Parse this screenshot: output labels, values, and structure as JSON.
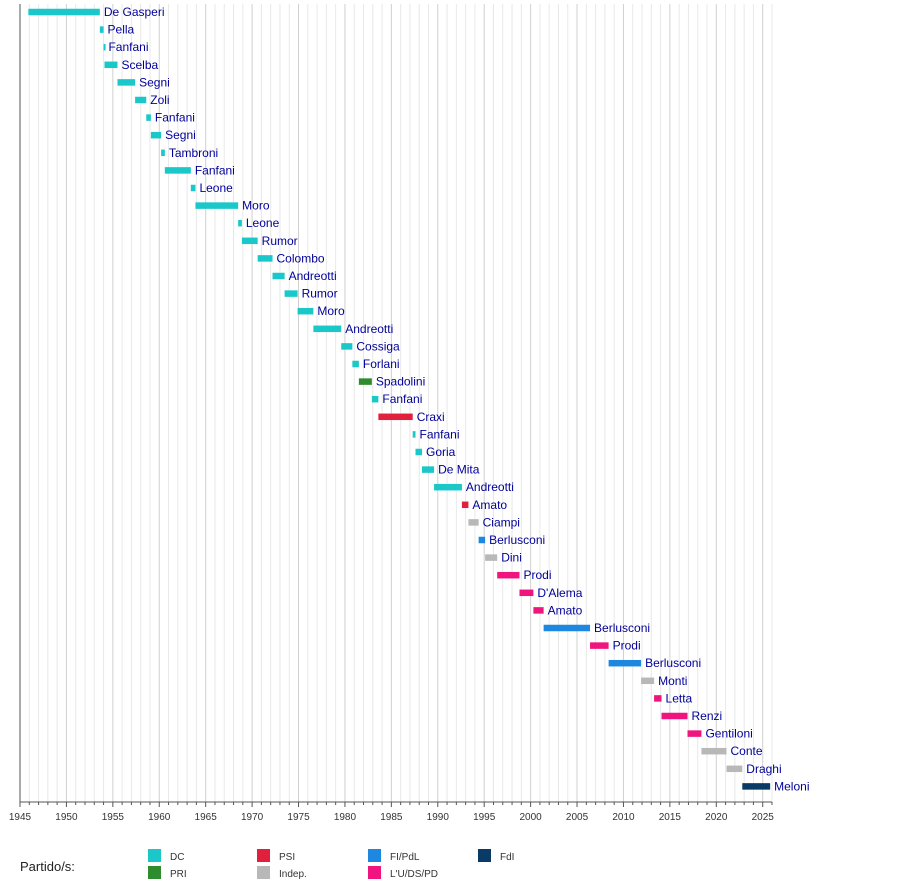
{
  "chart_data": {
    "type": "bar",
    "orientation": "horizontal-timeline",
    "xlim": [
      1945,
      2026
    ],
    "xticks": [
      "1945",
      "1950",
      "1955",
      "1960",
      "1965",
      "1970",
      "1975",
      "1980",
      "1985",
      "1990",
      "1995",
      "2000",
      "2005",
      "2010",
      "2015",
      "2020",
      "2025"
    ],
    "grid": "vertical-yearly",
    "bars": [
      {
        "label": "De Gasperi",
        "start": 1945.9,
        "end": 1953.6,
        "party": "DC"
      },
      {
        "label": "Pella",
        "start": 1953.6,
        "end": 1954.0,
        "party": "DC"
      },
      {
        "label": "Fanfani",
        "start": 1954.0,
        "end": 1954.1,
        "party": "DC"
      },
      {
        "label": "Scelba",
        "start": 1954.1,
        "end": 1955.5,
        "party": "DC"
      },
      {
        "label": "Segni",
        "start": 1955.5,
        "end": 1957.4,
        "party": "DC"
      },
      {
        "label": "Zoli",
        "start": 1957.4,
        "end": 1958.6,
        "party": "DC"
      },
      {
        "label": "Fanfani",
        "start": 1958.6,
        "end": 1959.1,
        "party": "DC"
      },
      {
        "label": "Segni",
        "start": 1959.1,
        "end": 1960.2,
        "party": "DC"
      },
      {
        "label": "Tambroni",
        "start": 1960.2,
        "end": 1960.6,
        "party": "DC"
      },
      {
        "label": "Fanfani",
        "start": 1960.6,
        "end": 1963.4,
        "party": "DC"
      },
      {
        "label": "Leone",
        "start": 1963.4,
        "end": 1963.9,
        "party": "DC"
      },
      {
        "label": "Moro",
        "start": 1963.9,
        "end": 1968.5,
        "party": "DC"
      },
      {
        "label": "Leone",
        "start": 1968.5,
        "end": 1968.9,
        "party": "DC"
      },
      {
        "label": "Rumor",
        "start": 1968.9,
        "end": 1970.6,
        "party": "DC"
      },
      {
        "label": "Colombo",
        "start": 1970.6,
        "end": 1972.2,
        "party": "DC"
      },
      {
        "label": "Andreotti",
        "start": 1972.2,
        "end": 1973.5,
        "party": "DC"
      },
      {
        "label": "Rumor",
        "start": 1973.5,
        "end": 1974.9,
        "party": "DC"
      },
      {
        "label": "Moro",
        "start": 1974.9,
        "end": 1976.6,
        "party": "DC"
      },
      {
        "label": "Andreotti",
        "start": 1976.6,
        "end": 1979.6,
        "party": "DC"
      },
      {
        "label": "Cossiga",
        "start": 1979.6,
        "end": 1980.8,
        "party": "DC"
      },
      {
        "label": "Forlani",
        "start": 1980.8,
        "end": 1981.5,
        "party": "DC"
      },
      {
        "label": "Spadolini",
        "start": 1981.5,
        "end": 1982.9,
        "party": "PRI"
      },
      {
        "label": "Fanfani",
        "start": 1982.9,
        "end": 1983.6,
        "party": "DC"
      },
      {
        "label": "Craxi",
        "start": 1983.6,
        "end": 1987.3,
        "party": "PSI"
      },
      {
        "label": "Fanfani",
        "start": 1987.3,
        "end": 1987.6,
        "party": "DC"
      },
      {
        "label": "Goria",
        "start": 1987.6,
        "end": 1988.3,
        "party": "DC"
      },
      {
        "label": "De Mita",
        "start": 1988.3,
        "end": 1989.6,
        "party": "DC"
      },
      {
        "label": "Andreotti",
        "start": 1989.6,
        "end": 1992.6,
        "party": "DC"
      },
      {
        "label": "Amato",
        "start": 1992.6,
        "end": 1993.3,
        "party": "PSI"
      },
      {
        "label": "Ciampi",
        "start": 1993.3,
        "end": 1994.4,
        "party": "Indep."
      },
      {
        "label": "Berlusconi",
        "start": 1994.4,
        "end": 1995.1,
        "party": "FI/PdL"
      },
      {
        "label": "Dini",
        "start": 1995.1,
        "end": 1996.4,
        "party": "Indep."
      },
      {
        "label": "Prodi",
        "start": 1996.4,
        "end": 1998.8,
        "party": "L'U/DS/PD"
      },
      {
        "label": "D'Alema",
        "start": 1998.8,
        "end": 2000.3,
        "party": "L'U/DS/PD"
      },
      {
        "label": "Amato",
        "start": 2000.3,
        "end": 2001.4,
        "party": "L'U/DS/PD"
      },
      {
        "label": "Berlusconi",
        "start": 2001.4,
        "end": 2006.4,
        "party": "FI/PdL"
      },
      {
        "label": "Prodi",
        "start": 2006.4,
        "end": 2008.4,
        "party": "L'U/DS/PD"
      },
      {
        "label": "Berlusconi",
        "start": 2008.4,
        "end": 2011.9,
        "party": "FI/PdL"
      },
      {
        "label": "Monti",
        "start": 2011.9,
        "end": 2013.3,
        "party": "Indep."
      },
      {
        "label": "Letta",
        "start": 2013.3,
        "end": 2014.1,
        "party": "L'U/DS/PD"
      },
      {
        "label": "Renzi",
        "start": 2014.1,
        "end": 2016.9,
        "party": "L'U/DS/PD"
      },
      {
        "label": "Gentiloni",
        "start": 2016.9,
        "end": 2018.4,
        "party": "L'U/DS/PD"
      },
      {
        "label": "Conte",
        "start": 2018.4,
        "end": 2021.1,
        "party": "Indep."
      },
      {
        "label": "Draghi",
        "start": 2021.1,
        "end": 2022.8,
        "party": "Indep."
      },
      {
        "label": "Meloni",
        "start": 2022.8,
        "end": 2025.8,
        "party": "FdI"
      }
    ],
    "legend": {
      "title": "Partido/s:",
      "placement": "bottom",
      "items": [
        {
          "name": "DC",
          "color": "#1AC7C9"
        },
        {
          "name": "PRI",
          "color": "#2E8B2E"
        },
        {
          "name": "PSI",
          "color": "#E0203C"
        },
        {
          "name": "Indep.",
          "color": "#B8B8B8"
        },
        {
          "name": "FI/PdL",
          "color": "#1E88E0"
        },
        {
          "name": "L'U/DS/PD",
          "color": "#F0147E"
        },
        {
          "name": "FdI",
          "color": "#0A3A66"
        }
      ]
    }
  }
}
